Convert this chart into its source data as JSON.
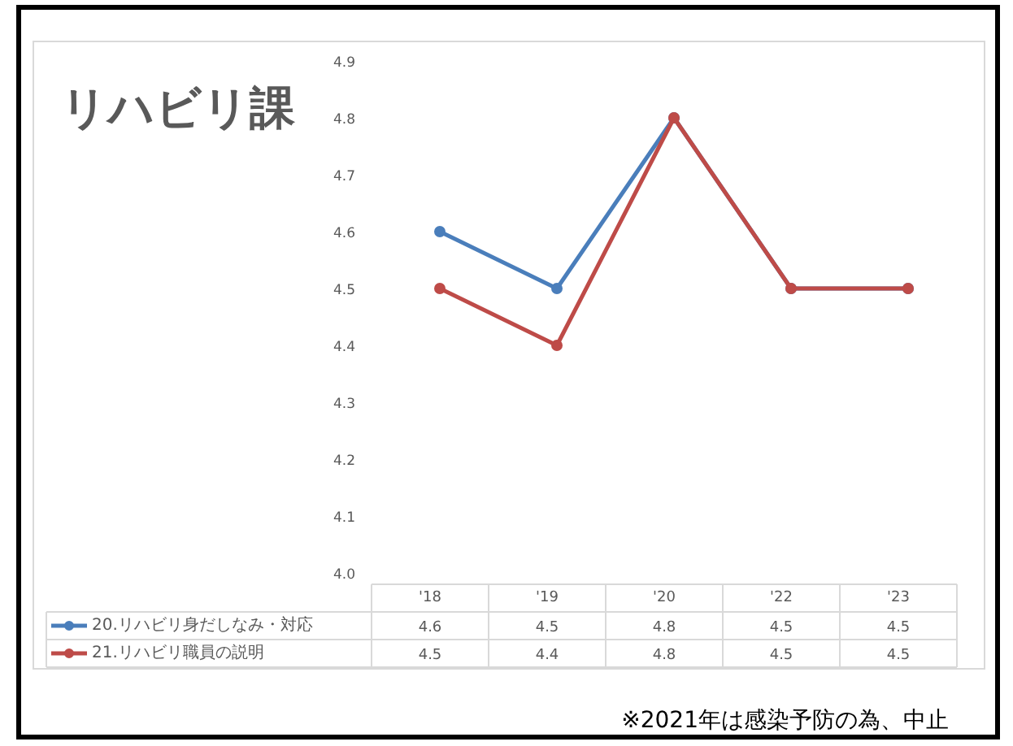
{
  "chart_data": {
    "type": "line",
    "title": "リハビリ課",
    "categories": [
      "'18",
      "'19",
      "'20",
      "'22",
      "'23"
    ],
    "series": [
      {
        "name": "20.リハビリ身だしなみ・対応",
        "color": "#4a7ebb",
        "values": [
          4.6,
          4.5,
          4.8,
          4.5,
          4.5
        ]
      },
      {
        "name": "21.リハビリ職員の説明",
        "color": "#be4b48",
        "values": [
          4.5,
          4.4,
          4.8,
          4.5,
          4.5
        ]
      }
    ],
    "ylim": [
      4.0,
      4.9
    ],
    "yticks": [
      {
        "value": 4.0,
        "label": "4.0"
      },
      4.1,
      4.2,
      4.3,
      4.4,
      4.5,
      4.6,
      4.7,
      4.8,
      4.9
    ],
    "marker": "circle",
    "line_style": "solid",
    "legend": "bottom",
    "data_labels": true,
    "annotations": [
      "※2021年は感染予防の為、中止"
    ]
  }
}
